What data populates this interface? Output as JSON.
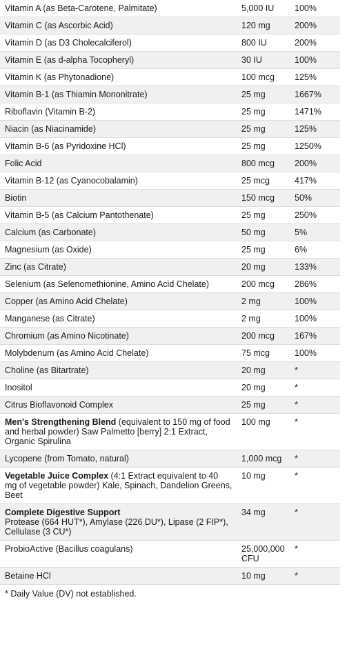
{
  "rows": [
    {
      "name": "Vitamin A (as Beta-Carotene, Palmitate)",
      "amount": "5,000 IU",
      "dv": "100%"
    },
    {
      "name": "Vitamin C (as Ascorbic Acid)",
      "amount": "120 mg",
      "dv": "200%"
    },
    {
      "name": "Vitamin D (as D3 Cholecalciferol)",
      "amount": "800 IU",
      "dv": "200%"
    },
    {
      "name": "Vitamin E (as d-alpha Tocopheryl)",
      "amount": "30 IU",
      "dv": "100%"
    },
    {
      "name": "Vitamin K (as Phytonadione)",
      "amount": "100 mcg",
      "dv": "125%"
    },
    {
      "name": "Vitamin B-1 (as Thiamin Mononitrate)",
      "amount": "25 mg",
      "dv": "1667%"
    },
    {
      "name": "Riboflavin (Vitamin B-2)",
      "amount": "25 mg",
      "dv": "1471%"
    },
    {
      "name": "Niacin (as Niacinamide)",
      "amount": "25 mg",
      "dv": "125%"
    },
    {
      "name": "Vitamin B-6 (as Pyridoxine HCl)",
      "amount": "25 mg",
      "dv": "1250%"
    },
    {
      "name": "Folic Acid",
      "amount": "800 mcg",
      "dv": "200%"
    },
    {
      "name": "Vitamin B-12 (as Cyanocobalamin)",
      "amount": "25 mcg",
      "dv": "417%"
    },
    {
      "name": "Biotin",
      "amount": "150 mcg",
      "dv": "50%"
    },
    {
      "name": "Vitamin B-5 (as Calcium Pantothenate)",
      "amount": "25 mg",
      "dv": "250%"
    },
    {
      "name": "Calcium (as Carbonate)",
      "amount": "50 mg",
      "dv": "5%"
    },
    {
      "name": "Magnesium (as Oxide)",
      "amount": "25 mg",
      "dv": "6%"
    },
    {
      "name": "Zinc (as Citrate)",
      "amount": "20 mg",
      "dv": "133%"
    },
    {
      "name": "Selenium (as Selenomethionine, Amino Acid Chelate)",
      "amount": "200 mcg",
      "dv": "286%"
    },
    {
      "name": "Copper (as Amino Acid Chelate)",
      "amount": "2 mg",
      "dv": "100%"
    },
    {
      "name": "Manganese (as Citrate)",
      "amount": "2 mg",
      "dv": "100%"
    },
    {
      "name": "Chromium (as Amino Nicotinate)",
      "amount": "200 mcg",
      "dv": "167%"
    },
    {
      "name": "Molybdenum (as Amino Acid Chelate)",
      "amount": "75 mcg",
      "dv": "100%"
    },
    {
      "name": "Choline (as Bitartrate)",
      "amount": "20 mg",
      "dv": "*"
    },
    {
      "name": "Inositol",
      "amount": "20 mg",
      "dv": "*"
    },
    {
      "name": "Citrus Bioflavonoid Complex",
      "amount": "25 mg",
      "dv": "*"
    },
    {
      "bold": "Men's Strengthening Blend",
      "rest": " (equivalent to 150 mg of food and herbal powder) Saw Palmetto [berry] 2:1 Extract, Organic Spirulina",
      "amount": "100 mg",
      "dv": "*"
    },
    {
      "name": "Lycopene (from Tomato, natural)",
      "amount": "1,000 mcg",
      "dv": "*"
    },
    {
      "bold": "Vegetable Juice Complex",
      "rest": " (4:1 Extract equivalent to 40 mg of vegetable powder) Kale, Spinach, Dandelion Greens, Beet",
      "amount": "10 mg",
      "dv": "*"
    },
    {
      "bold": "Complete Digestive Support",
      "rest": "Protease (664 HUT*), Amylase (226 DU*), Lipase (2 FIP*), Cellulase (3 CU*)",
      "rest_newline": true,
      "amount": "34 mg",
      "dv": "*"
    },
    {
      "name": "ProbioActive (Bacillus coagulans)",
      "amount": "25,000,000 CFU",
      "dv": "*"
    },
    {
      "name": "Betaine HCl",
      "amount": "10 mg",
      "dv": "*"
    }
  ],
  "footnote": "* Daily Value (DV) not established."
}
